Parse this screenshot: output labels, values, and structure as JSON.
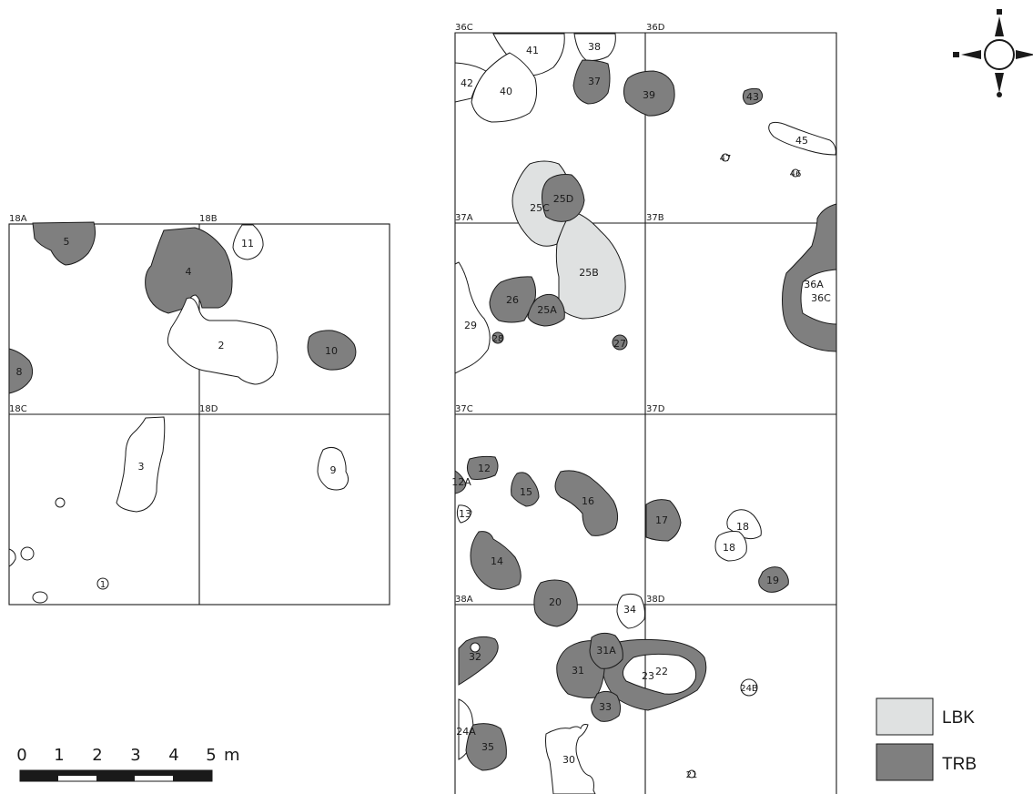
{
  "squares": [
    "36C",
    "36D",
    "37A",
    "37B",
    "37C",
    "37D",
    "38A",
    "38D",
    "18A",
    "18B",
    "18C",
    "18D"
  ],
  "features": {
    "f1": "1",
    "f2": "2",
    "f3": "3",
    "f4": "4",
    "f5": "5",
    "f8": "8",
    "f9": "9",
    "f10": "10",
    "f11": "11",
    "f12": "12",
    "f12A": "12A",
    "f13": "13",
    "f14": "14",
    "f15": "15",
    "f16": "16",
    "f17": "17",
    "f18a": "18",
    "f18b": "18",
    "f19": "19",
    "f20": "20",
    "f21": "21",
    "f22": "22",
    "f23": "23",
    "f24A": "24A",
    "f24B": "24B",
    "f25A": "25A",
    "f25B": "25B",
    "f25C": "25C",
    "f25D": "25D",
    "f26": "26",
    "f27": "27",
    "f28": "28",
    "f29": "29",
    "f30": "30",
    "f31": "31",
    "f31A": "31A",
    "f32": "32",
    "f33": "33",
    "f34": "34",
    "f35": "35",
    "f36A": "36A",
    "f36C": "36C",
    "f37": "37",
    "f38": "38",
    "f39": "39",
    "f40": "40",
    "f41": "41",
    "f42": "42",
    "f43": "43",
    "f45": "45",
    "f46": "46",
    "f47": "47"
  },
  "scale": {
    "ticks": [
      "0",
      "1",
      "2",
      "3",
      "4",
      "5"
    ],
    "unit": "m"
  },
  "legend": {
    "lbk": {
      "label": "LBK",
      "color": "#dfe1e1"
    },
    "trb": {
      "label": "TRB",
      "color": "#7f7f7f"
    }
  },
  "compass": {
    "icon": "north-arrow-icon"
  }
}
